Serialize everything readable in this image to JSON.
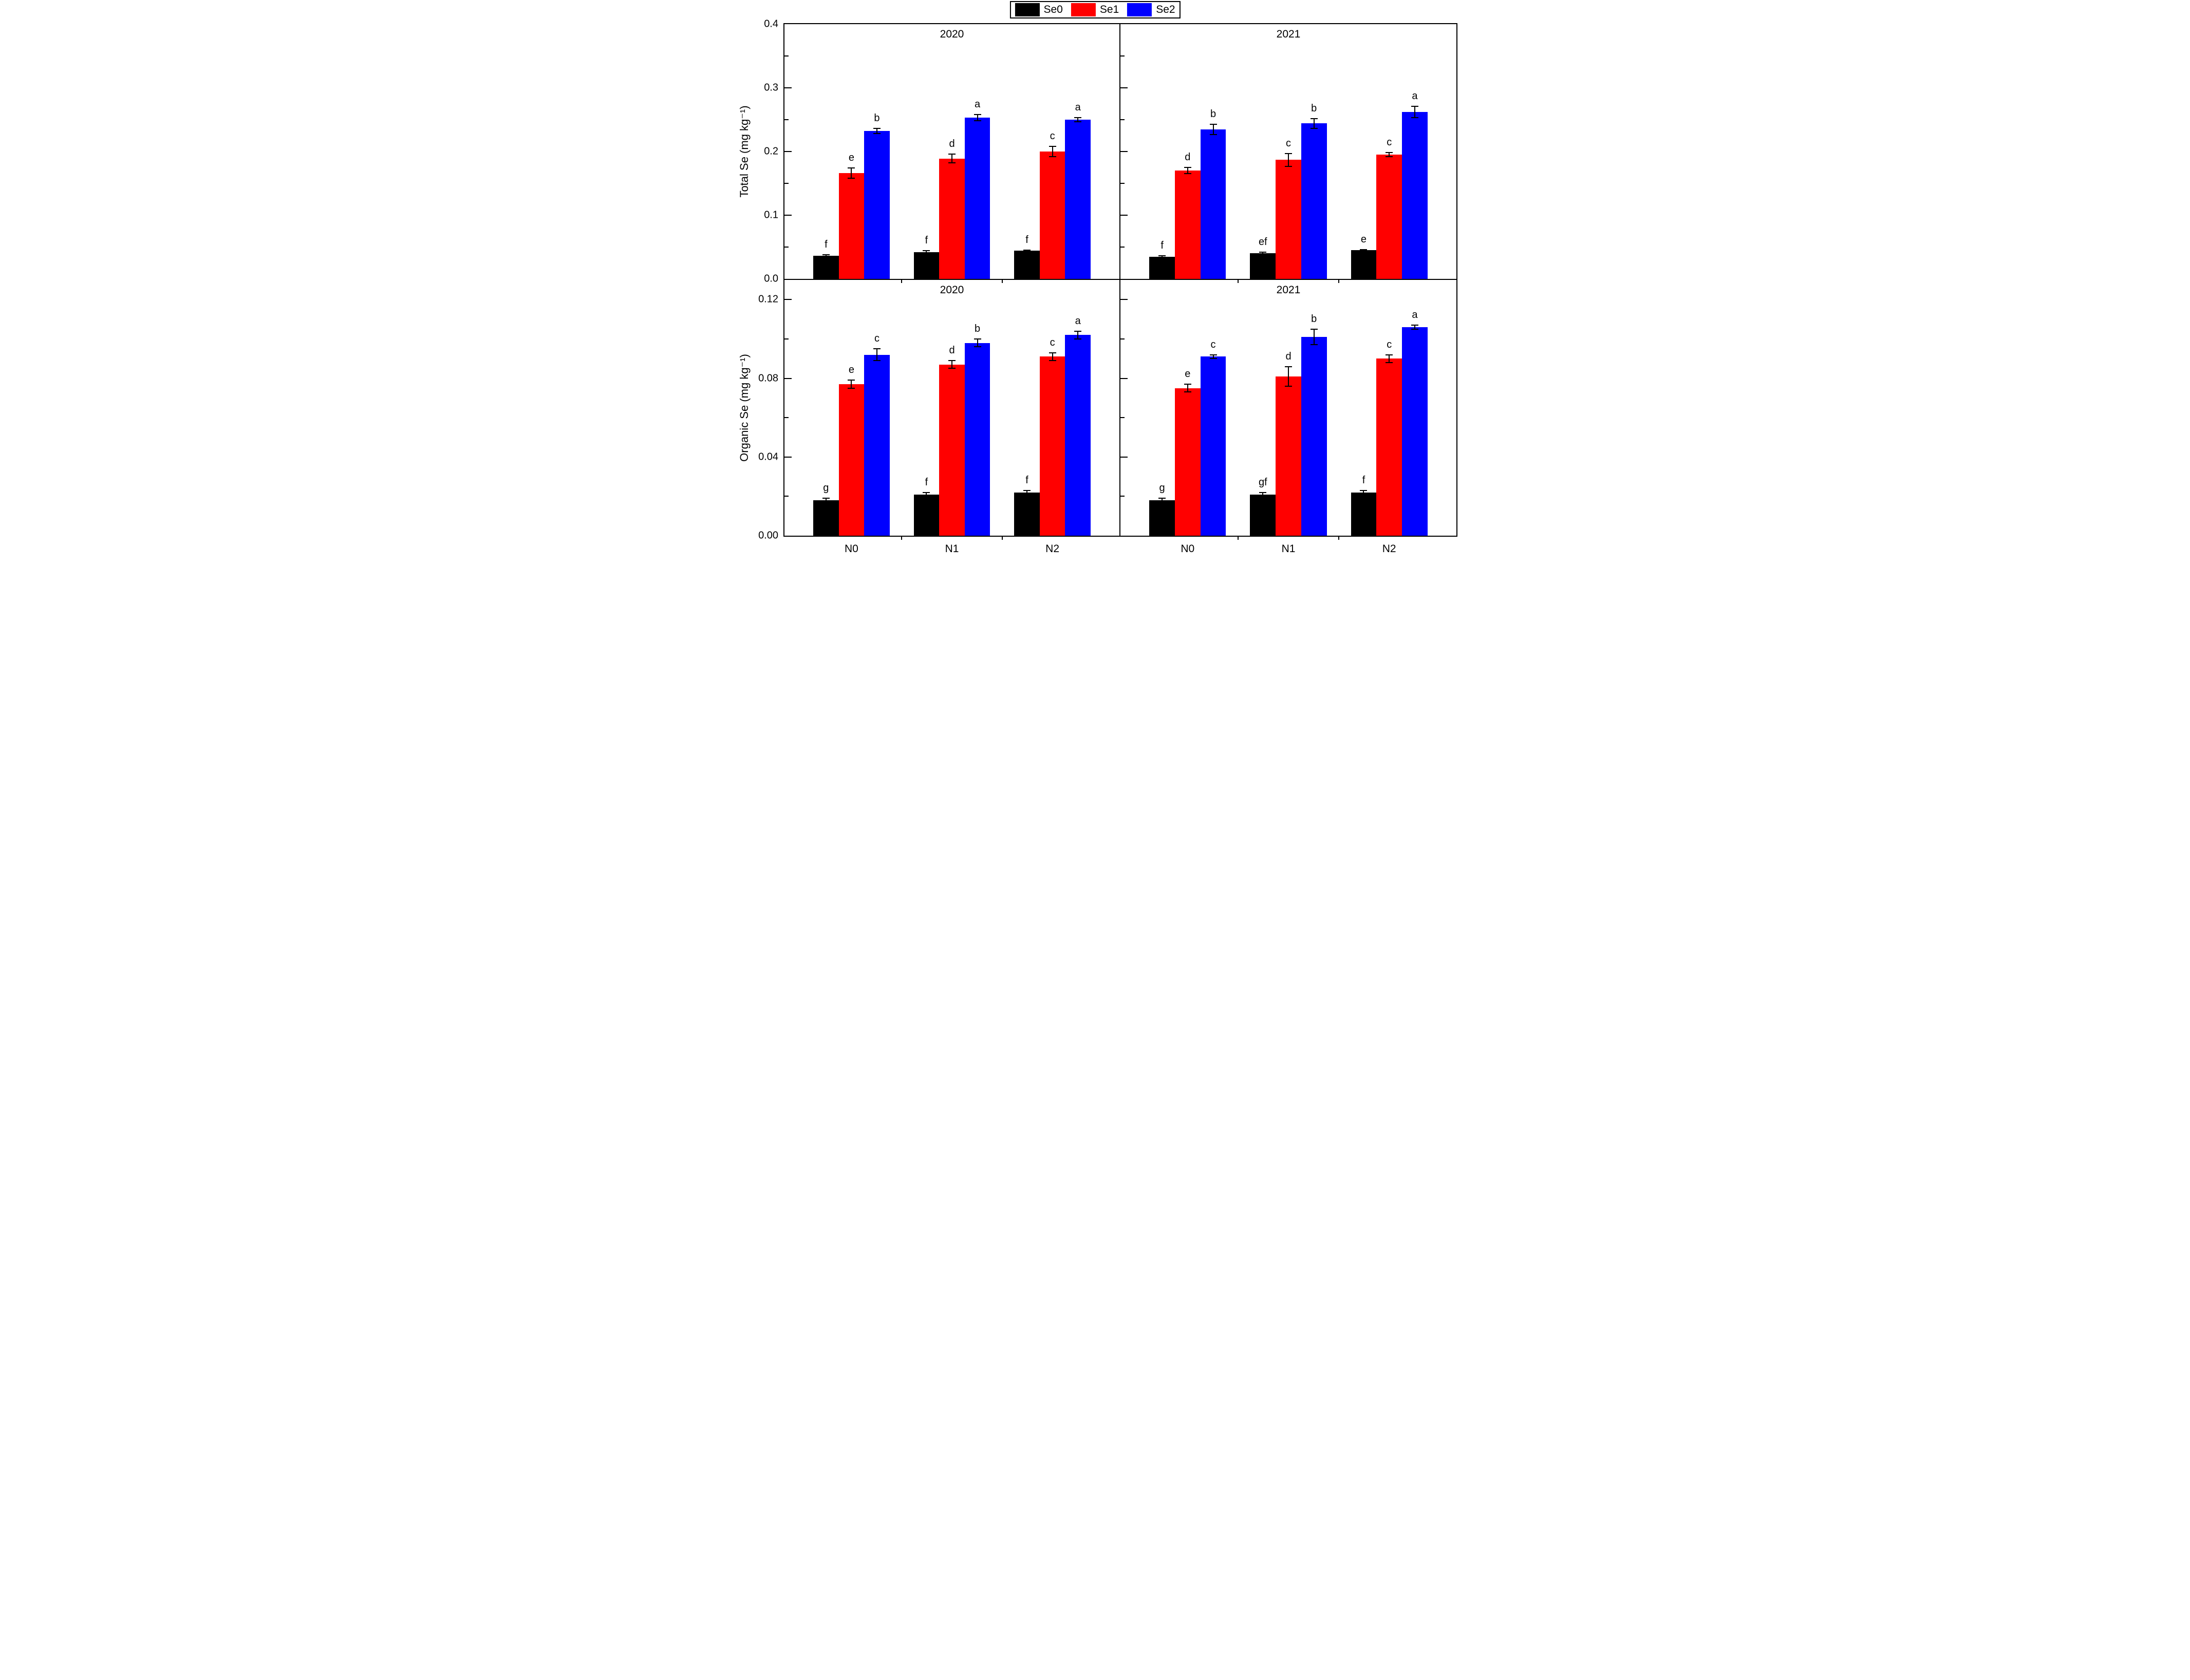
{
  "legend": {
    "entries": [
      {
        "label": "Se0",
        "color": "#000000"
      },
      {
        "label": "Se1",
        "color": "#FF0000"
      },
      {
        "label": "Se2",
        "color": "#0000FF"
      }
    ]
  },
  "chart_data": [
    {
      "type": "bar",
      "position": "top-left",
      "title": "2020",
      "ylabel": "Total Se (mg kg⁻¹)",
      "categories": [
        "N0",
        "N1",
        "N2"
      ],
      "ylim": [
        0,
        0.4
      ],
      "yticks": [
        0.0,
        0.1,
        0.2,
        0.3,
        0.4
      ],
      "ytick_labels": [
        "0.0",
        "0.1",
        "0.2",
        "0.3",
        "0.4"
      ],
      "yticks_minor": [
        0.05,
        0.15,
        0.25,
        0.35
      ],
      "grid": false,
      "series": [
        {
          "name": "Se0",
          "color": "#000000",
          "values": [
            0.036,
            0.042,
            0.044
          ],
          "errors": [
            0.002,
            0.002,
            0.001
          ],
          "letters": [
            "f",
            "f",
            "f"
          ]
        },
        {
          "name": "Se1",
          "color": "#FF0000",
          "values": [
            0.166,
            0.189,
            0.2
          ],
          "errors": [
            0.008,
            0.007,
            0.008
          ],
          "letters": [
            "e",
            "d",
            "c"
          ]
        },
        {
          "name": "Se2",
          "color": "#0000FF",
          "values": [
            0.232,
            0.253,
            0.25
          ],
          "errors": [
            0.004,
            0.005,
            0.003
          ],
          "letters": [
            "b",
            "a",
            "a"
          ]
        }
      ]
    },
    {
      "type": "bar",
      "position": "top-right",
      "title": "2021",
      "ylabel": "",
      "categories": [
        "N0",
        "N1",
        "N2"
      ],
      "ylim": [
        0,
        0.4
      ],
      "yticks": [
        0.0,
        0.1,
        0.2,
        0.3,
        0.4
      ],
      "ytick_labels": [
        "0.0",
        "0.1",
        "0.2",
        "0.3",
        "0.4"
      ],
      "yticks_minor": [
        0.05,
        0.15,
        0.25,
        0.35
      ],
      "grid": false,
      "series": [
        {
          "name": "Se0",
          "color": "#000000",
          "values": [
            0.035,
            0.04,
            0.045
          ],
          "errors": [
            0.001,
            0.002,
            0.001
          ],
          "letters": [
            "f",
            "ef",
            "e"
          ]
        },
        {
          "name": "Se1",
          "color": "#FF0000",
          "values": [
            0.17,
            0.187,
            0.195
          ],
          "errors": [
            0.005,
            0.01,
            0.003
          ],
          "letters": [
            "d",
            "c",
            "c"
          ]
        },
        {
          "name": "Se2",
          "color": "#0000FF",
          "values": [
            0.235,
            0.244,
            0.262
          ],
          "errors": [
            0.008,
            0.008,
            0.009
          ],
          "letters": [
            "b",
            "b",
            "a"
          ]
        }
      ]
    },
    {
      "type": "bar",
      "position": "bottom-left",
      "title": "2020",
      "ylabel": "Organic Se (mg kg⁻¹)",
      "categories": [
        "N0",
        "N1",
        "N2"
      ],
      "ylim": [
        0,
        0.13
      ],
      "yticks": [
        0.0,
        0.04,
        0.08,
        0.12
      ],
      "ytick_labels": [
        "0.00",
        "0.04",
        "0.08",
        "0.12"
      ],
      "yticks_minor": [
        0.02,
        0.06,
        0.1
      ],
      "grid": false,
      "series": [
        {
          "name": "Se0",
          "color": "#000000",
          "values": [
            0.018,
            0.021,
            0.022
          ],
          "errors": [
            0.001,
            0.001,
            0.001
          ],
          "letters": [
            "g",
            "f",
            "f"
          ]
        },
        {
          "name": "Se1",
          "color": "#FF0000",
          "values": [
            0.077,
            0.087,
            0.091
          ],
          "errors": [
            0.002,
            0.002,
            0.002
          ],
          "letters": [
            "e",
            "d",
            "c"
          ]
        },
        {
          "name": "Se2",
          "color": "#0000FF",
          "values": [
            0.092,
            0.098,
            0.102
          ],
          "errors": [
            0.003,
            0.002,
            0.002
          ],
          "letters": [
            "c",
            "b",
            "a"
          ]
        }
      ]
    },
    {
      "type": "bar",
      "position": "bottom-right",
      "title": "2021",
      "ylabel": "",
      "categories": [
        "N0",
        "N1",
        "N2"
      ],
      "ylim": [
        0,
        0.13
      ],
      "yticks": [
        0.0,
        0.04,
        0.08,
        0.12
      ],
      "ytick_labels": [
        "0.00",
        "0.04",
        "0.08",
        "0.12"
      ],
      "yticks_minor": [
        0.02,
        0.06,
        0.1
      ],
      "grid": false,
      "series": [
        {
          "name": "Se0",
          "color": "#000000",
          "values": [
            0.018,
            0.021,
            0.022
          ],
          "errors": [
            0.001,
            0.001,
            0.001
          ],
          "letters": [
            "g",
            "gf",
            "f"
          ]
        },
        {
          "name": "Se1",
          "color": "#FF0000",
          "values": [
            0.075,
            0.081,
            0.09
          ],
          "errors": [
            0.002,
            0.005,
            0.002
          ],
          "letters": [
            "e",
            "d",
            "c"
          ]
        },
        {
          "name": "Se2",
          "color": "#0000FF",
          "values": [
            0.091,
            0.101,
            0.106
          ],
          "errors": [
            0.001,
            0.004,
            0.001
          ],
          "letters": [
            "c",
            "b",
            "a"
          ]
        }
      ]
    }
  ]
}
